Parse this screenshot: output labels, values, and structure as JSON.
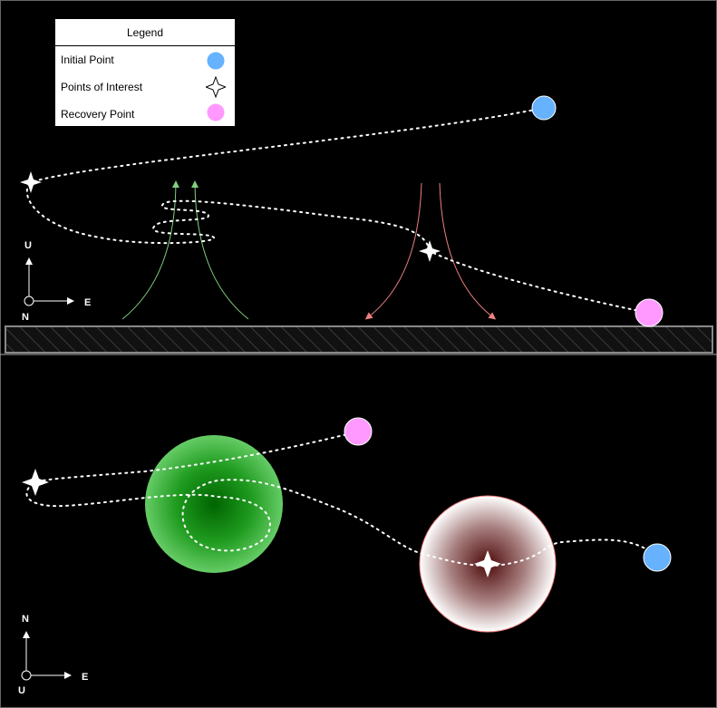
{
  "legend": {
    "title": "Legend",
    "items": [
      {
        "label": "Initial Point",
        "color": "#66B2FF",
        "icon": "blue-circle"
      },
      {
        "label": "Points of Interest",
        "color": "#FFFFFF",
        "icon": "four-point-star"
      },
      {
        "label": "Recovery Point",
        "color": "#FF99FF",
        "icon": "pink-circle"
      }
    ]
  },
  "side_view": {
    "axis": {
      "up": "U",
      "east": "E",
      "out": "N"
    },
    "updraft_color": "#7FD07F",
    "downdraft_color": "#F08080"
  },
  "top_view": {
    "axis": {
      "up": "N",
      "east": "E",
      "out": "U"
    },
    "updraft_zone_color": "#00A000",
    "downdraft_zone_color": "#5A1414"
  }
}
